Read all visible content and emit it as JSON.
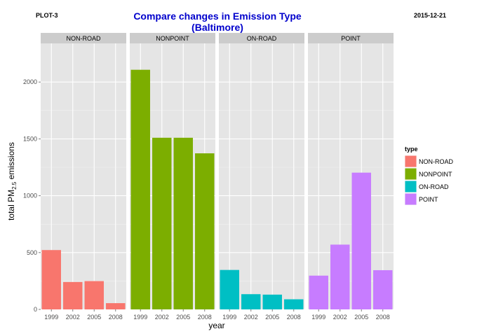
{
  "header": {
    "plot_label": "PLOT-3",
    "date": "2015-12-21",
    "title_line1": "Compare changes in Emission Type",
    "title_line2": "(Baltimore)"
  },
  "chart_data": {
    "type": "bar",
    "title": "Compare changes in Emission Type (Baltimore)",
    "xlabel": "year",
    "ylabel_parts": [
      "total PM",
      "2.5",
      " emissions"
    ],
    "ylim": [
      0,
      2340
    ],
    "yticks": [
      0,
      500,
      1000,
      1500,
      2000
    ],
    "grid": true,
    "legend": {
      "title": "type",
      "placement": "right",
      "items": [
        {
          "label": "NON-ROAD",
          "color": "#F8766D"
        },
        {
          "label": "NONPOINT",
          "color": "#7CAE00"
        },
        {
          "label": "ON-ROAD",
          "color": "#00BFC4"
        },
        {
          "label": "POINT",
          "color": "#C77CFF"
        }
      ]
    },
    "categories": [
      "1999",
      "2002",
      "2005",
      "2008"
    ],
    "panels": [
      {
        "name": "NON-ROAD",
        "color": "#F8766D",
        "values": [
          522,
          241,
          249,
          55
        ]
      },
      {
        "name": "NONPOINT",
        "color": "#7CAE00",
        "values": [
          2108,
          1510,
          1510,
          1373
        ]
      },
      {
        "name": "ON-ROAD",
        "color": "#00BFC4",
        "values": [
          347,
          134,
          130,
          89
        ]
      },
      {
        "name": "POINT",
        "color": "#C77CFF",
        "values": [
          297,
          570,
          1203,
          345
        ]
      }
    ]
  }
}
